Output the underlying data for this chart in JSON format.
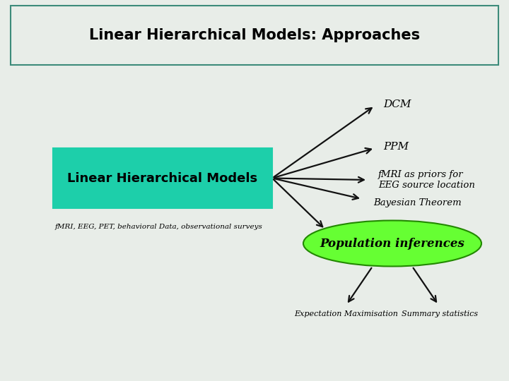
{
  "title": "Linear Hierarchical Models: Approaches",
  "bg_color": "#e8ede8",
  "title_box_facecolor": "#e8ede8",
  "title_box_edge": "#3d8b7a",
  "lhm_box_color": "#1dcfaa",
  "lhm_box_edge": "#1dcfaa",
  "lhm_text": "Linear Hierarchical Models",
  "input_label": "fMRI, EEG, PET, behavioral Data, observational surveys",
  "dcm_label": "DCM",
  "ppm_label": "PPM",
  "fmri_label": "fMRI as priors for\nEEG source location",
  "bayes_label": "Bayesian Theorem",
  "pop_inf_label": "Population inferences",
  "pop_color": "#66ff33",
  "pop_edge": "#228800",
  "em_label": "Expectation Maximisation",
  "ss_label": "Summary statistics",
  "arrow_color": "#111111"
}
